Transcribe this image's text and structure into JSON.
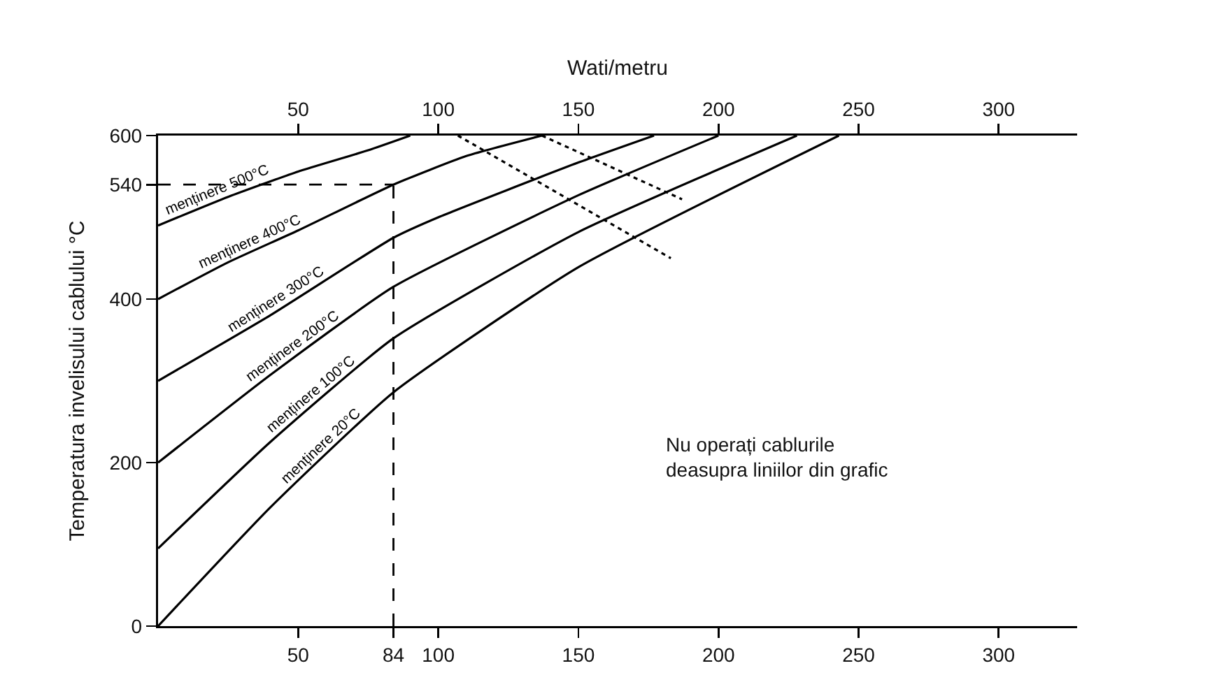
{
  "chart_data": {
    "type": "line",
    "x2label": "Wati/metru",
    "ylabel": "Temperatura invelisului cablului °C",
    "xlim": [
      0,
      328
    ],
    "xticks": [
      50,
      84,
      100,
      150,
      200,
      250,
      300
    ],
    "x2lim": [
      0,
      328
    ],
    "x2ticks": [
      50,
      100,
      150,
      200,
      250,
      300
    ],
    "ylim": [
      0,
      600
    ],
    "yticks": [
      0,
      200,
      400,
      540,
      600
    ],
    "grid": false,
    "marker": "none",
    "series": [
      {
        "name": "menținere 500°C",
        "color": "#000000",
        "line_style": "solid",
        "x": [
          0,
          25,
          50,
          75,
          90
        ],
        "values": [
          490,
          525,
          556,
          582,
          600
        ]
      },
      {
        "name": "menținere 400°C",
        "color": "#000000",
        "line_style": "solid",
        "x": [
          0,
          25,
          50,
          84,
          110,
          137
        ],
        "values": [
          400,
          445,
          484,
          540,
          575,
          600
        ]
      },
      {
        "name": "menținere 300°C",
        "color": "#000000",
        "line_style": "solid",
        "x": [
          0,
          40,
          84,
          100,
          150,
          177
        ],
        "values": [
          300,
          380,
          475,
          500,
          567,
          600
        ]
      },
      {
        "name": "menținere 200°C",
        "color": "#000000",
        "line_style": "solid",
        "x": [
          0,
          40,
          84,
          150,
          200
        ],
        "values": [
          200,
          307,
          415,
          527,
          600
        ]
      },
      {
        "name": "menținere 100°C",
        "color": "#000000",
        "line_style": "solid",
        "x": [
          0,
          40,
          84,
          150,
          228
        ],
        "values": [
          95,
          225,
          352,
          482,
          600
        ]
      },
      {
        "name": "menținere 20°C",
        "color": "#000000",
        "line_style": "solid",
        "x": [
          0,
          40,
          84,
          150,
          243
        ],
        "values": [
          0,
          145,
          286,
          439,
          600
        ]
      },
      {
        "color": "#000000",
        "line_style": "dotted",
        "x": [
          137,
          187
        ],
        "values": [
          600,
          522
        ]
      },
      {
        "color": "#000000",
        "line_style": "dotted",
        "x": [
          107,
          183
        ],
        "values": [
          600,
          450
        ]
      }
    ],
    "ref_lines": [
      {
        "axis": "y",
        "value": 540,
        "color": "#000000",
        "line_style": "dashed"
      },
      {
        "axis": "x",
        "value": 84,
        "color": "#000000",
        "line_style": "dashed"
      }
    ],
    "annotations": [
      "Nu operați cablurile deasupra liniilor din grafic"
    ]
  }
}
